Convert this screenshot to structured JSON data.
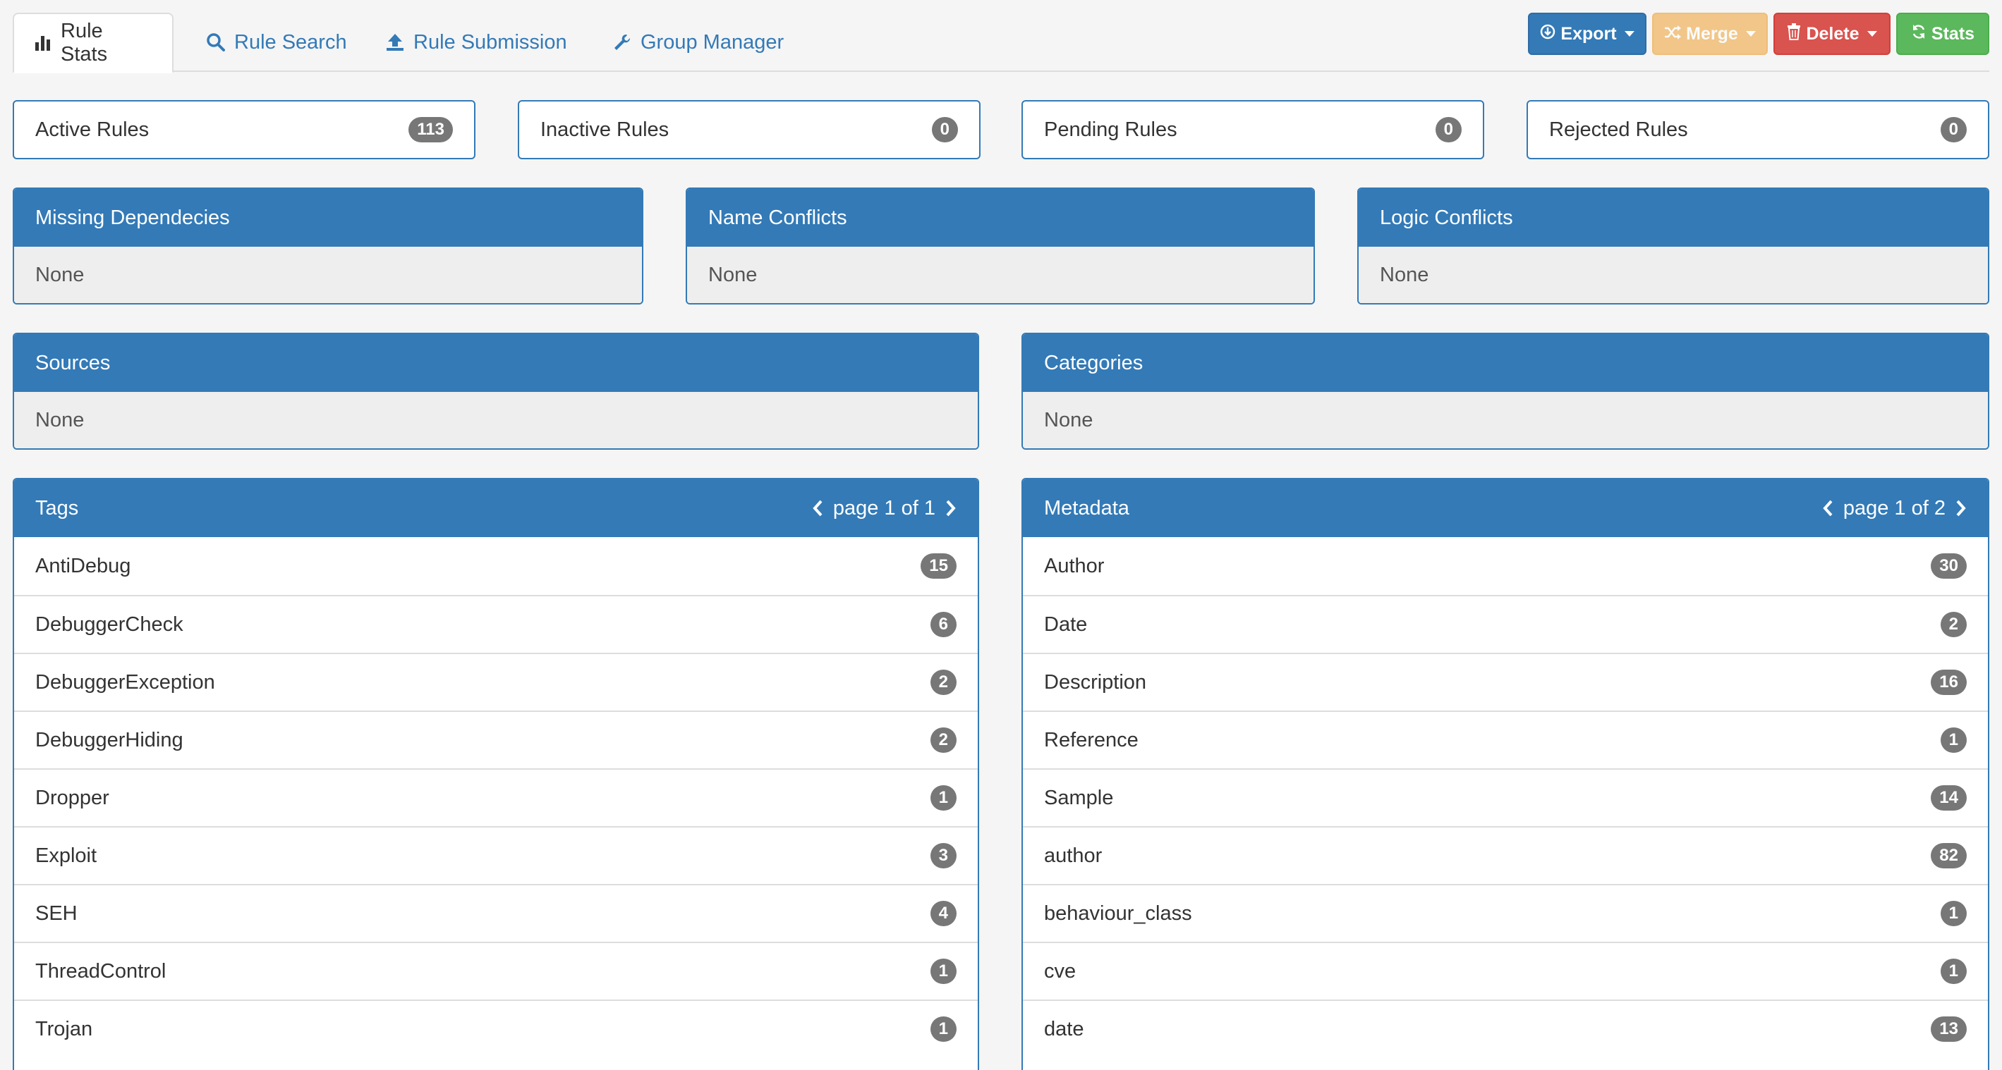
{
  "nav": {
    "tabs": [
      {
        "label": "Rule Stats",
        "icon": "bar-chart-icon",
        "active": true
      },
      {
        "label": "Rule Search",
        "icon": "search-icon"
      },
      {
        "label": "Rule Submission",
        "icon": "upload-icon"
      },
      {
        "label": "Group Manager",
        "icon": "wrench-icon"
      }
    ],
    "buttons": {
      "export": "Export",
      "merge": "Merge",
      "delete": "Delete",
      "stats": "Stats"
    }
  },
  "stats": [
    {
      "label": "Active Rules",
      "count": "113"
    },
    {
      "label": "Inactive Rules",
      "count": "0"
    },
    {
      "label": "Pending Rules",
      "count": "0"
    },
    {
      "label": "Rejected Rules",
      "count": "0"
    }
  ],
  "conflicts": [
    {
      "title": "Missing Dependecies",
      "body": "None"
    },
    {
      "title": "Name Conflicts",
      "body": "None"
    },
    {
      "title": "Logic Conflicts",
      "body": "None"
    }
  ],
  "sources": {
    "title": "Sources",
    "body": "None"
  },
  "categories": {
    "title": "Categories",
    "body": "None"
  },
  "tags": {
    "title": "Tags",
    "pager": "page 1 of 1",
    "items": [
      {
        "label": "AntiDebug",
        "count": "15"
      },
      {
        "label": "DebuggerCheck",
        "count": "6"
      },
      {
        "label": "DebuggerException",
        "count": "2"
      },
      {
        "label": "DebuggerHiding",
        "count": "2"
      },
      {
        "label": "Dropper",
        "count": "1"
      },
      {
        "label": "Exploit",
        "count": "3"
      },
      {
        "label": "SEH",
        "count": "4"
      },
      {
        "label": "ThreadControl",
        "count": "1"
      },
      {
        "label": "Trojan",
        "count": "1"
      }
    ]
  },
  "metadata": {
    "title": "Metadata",
    "pager": "page 1 of 2",
    "items": [
      {
        "label": "Author",
        "count": "30"
      },
      {
        "label": "Date",
        "count": "2"
      },
      {
        "label": "Description",
        "count": "16"
      },
      {
        "label": "Reference",
        "count": "1"
      },
      {
        "label": "Sample",
        "count": "14"
      },
      {
        "label": "author",
        "count": "82"
      },
      {
        "label": "behaviour_class",
        "count": "1"
      },
      {
        "label": "cve",
        "count": "1"
      },
      {
        "label": "date",
        "count": "13"
      }
    ]
  }
}
